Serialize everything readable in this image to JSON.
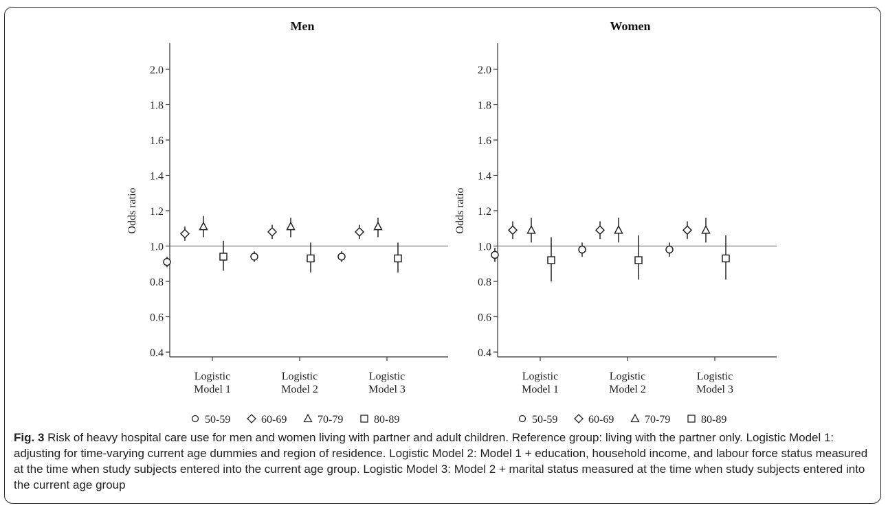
{
  "chart_data": [
    {
      "type": "scatter",
      "title": "Men",
      "ylabel": "Odds ratio",
      "ylim": [
        0.35,
        2.15
      ],
      "yticks": [
        "0.4",
        "0.6",
        "0.8",
        "1.0",
        "1.2",
        "1.4",
        "1.6",
        "1.8",
        "2.0"
      ],
      "reference_line": 1.0,
      "categories": [
        [
          "Logistic",
          "Model 1"
        ],
        [
          "Logistic",
          "Model 2"
        ],
        [
          "Logistic",
          "Model 3"
        ]
      ],
      "series": [
        {
          "name": "50-59",
          "marker": "circle",
          "values": [
            0.91,
            0.94,
            0.94
          ],
          "lower": [
            0.88,
            0.91,
            0.91
          ],
          "upper": [
            0.94,
            0.97,
            0.97
          ]
        },
        {
          "name": "60-69",
          "marker": "diamond",
          "values": [
            1.07,
            1.08,
            1.08
          ],
          "lower": [
            1.03,
            1.04,
            1.04
          ],
          "upper": [
            1.11,
            1.12,
            1.12
          ]
        },
        {
          "name": "70-79",
          "marker": "triangle",
          "values": [
            1.11,
            1.11,
            1.11
          ],
          "lower": [
            1.05,
            1.05,
            1.05
          ],
          "upper": [
            1.17,
            1.16,
            1.16
          ]
        },
        {
          "name": "80-89",
          "marker": "square",
          "values": [
            0.94,
            0.93,
            0.93
          ],
          "lower": [
            0.86,
            0.85,
            0.85
          ],
          "upper": [
            1.03,
            1.02,
            1.02
          ]
        }
      ],
      "legend_position": "bottom",
      "grid": false
    },
    {
      "type": "scatter",
      "title": "Women",
      "ylabel": "Odds ratio",
      "ylim": [
        0.35,
        2.15
      ],
      "yticks": [
        "0.4",
        "0.6",
        "0.8",
        "1.0",
        "1.2",
        "1.4",
        "1.6",
        "1.8",
        "2.0"
      ],
      "reference_line": 1.0,
      "categories": [
        [
          "Logistic",
          "Model 1"
        ],
        [
          "Logistic",
          "Model 2"
        ],
        [
          "Logistic",
          "Model 3"
        ]
      ],
      "series": [
        {
          "name": "50-59",
          "marker": "circle",
          "values": [
            0.95,
            0.98,
            0.98
          ],
          "lower": [
            0.91,
            0.94,
            0.94
          ],
          "upper": [
            0.99,
            1.02,
            1.02
          ]
        },
        {
          "name": "60-69",
          "marker": "diamond",
          "values": [
            1.09,
            1.09,
            1.09
          ],
          "lower": [
            1.04,
            1.04,
            1.04
          ],
          "upper": [
            1.14,
            1.14,
            1.14
          ]
        },
        {
          "name": "70-79",
          "marker": "triangle",
          "values": [
            1.09,
            1.09,
            1.09
          ],
          "lower": [
            1.02,
            1.02,
            1.02
          ],
          "upper": [
            1.16,
            1.16,
            1.16
          ]
        },
        {
          "name": "80-89",
          "marker": "square",
          "values": [
            0.92,
            0.92,
            0.93
          ],
          "lower": [
            0.8,
            0.81,
            0.81
          ],
          "upper": [
            1.05,
            1.06,
            1.06
          ]
        }
      ],
      "legend_position": "bottom",
      "grid": false
    }
  ],
  "caption": {
    "label": "Fig. 3",
    "text": "Risk of heavy hospital care use for men and women living with partner and adult children. Reference group: living with the partner only. Logistic Model 1: adjusting for time-varying current age dummies and region of residence. Logistic Model 2: Model 1 + education, household income, and labour force status measured at the time when study subjects entered into the current age group. Logistic Model 3: Model 2 + marital status measured at the time when study subjects entered into the current age group"
  }
}
